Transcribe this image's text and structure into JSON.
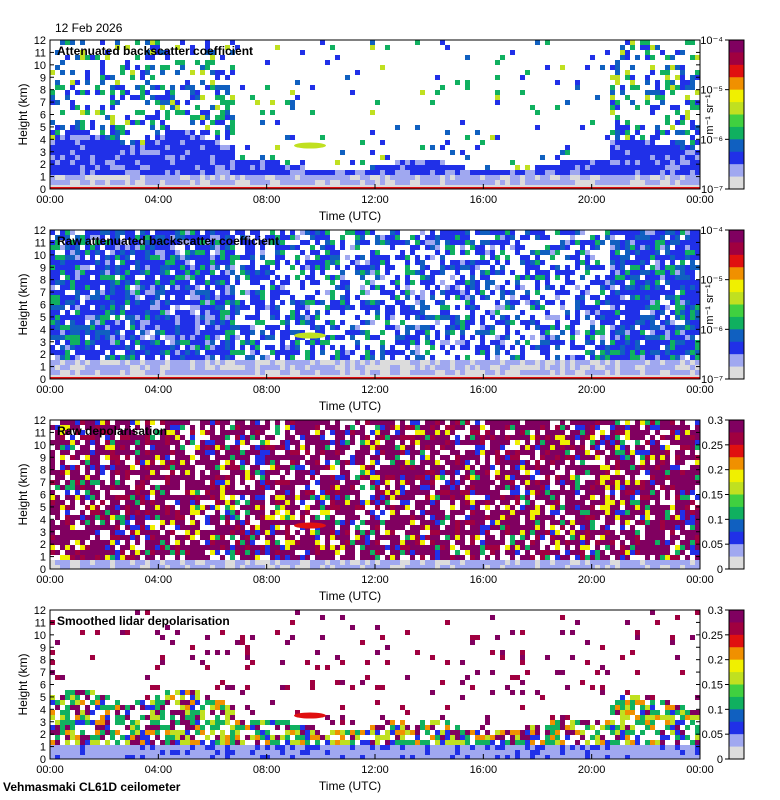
{
  "date": "12 Feb 2026",
  "footer": "Vehmasmaki CL61D ceilometer",
  "x_tick_labels": [
    "00:00",
    "04:00",
    "08:00",
    "12:00",
    "16:00",
    "20:00",
    "00:00"
  ],
  "y_tick_labels": [
    "0",
    "1",
    "2",
    "3",
    "4",
    "5",
    "6",
    "7",
    "8",
    "9",
    "10",
    "11",
    "12"
  ],
  "xlabel": "Time (UTC)",
  "ylabel": "Height (km)",
  "log_colorbar": {
    "unit_label": "m⁻¹ sr⁻¹",
    "ticks": [
      {
        "value": 1e-07,
        "label": "10⁻⁷"
      },
      {
        "value": 1e-06,
        "label": "10⁻⁶"
      },
      {
        "value": 1e-05,
        "label": "10⁻⁵"
      },
      {
        "value": 0.0001,
        "label": "10⁻⁴"
      }
    ]
  },
  "lin_colorbar": {
    "ticks": [
      {
        "value": 0,
        "label": "0"
      },
      {
        "value": 0.05,
        "label": "0.05"
      },
      {
        "value": 0.1,
        "label": "0.1"
      },
      {
        "value": 0.15,
        "label": "0.15"
      },
      {
        "value": 0.2,
        "label": "0.2"
      },
      {
        "value": 0.25,
        "label": "0.25"
      },
      {
        "value": 0.3,
        "label": "0.3"
      }
    ]
  },
  "colormap": [
    "#dcdcdc",
    "#a0a8f0",
    "#2030e8",
    "#1060c0",
    "#10b060",
    "#40d040",
    "#c0e020",
    "#f0f000",
    "#f09000",
    "#e01010",
    "#a00040",
    "#800060"
  ],
  "chart_data": [
    {
      "type": "heatmap",
      "title": "Attenuated backscatter coefficient",
      "x_range": [
        "00:00",
        "24:00"
      ],
      "y_range_km": [
        0,
        12
      ],
      "color_scale": "log",
      "color_range": [
        1e-07,
        0.0001
      ]
    },
    {
      "type": "heatmap",
      "title": "Raw attenuated backscatter coefficient",
      "x_range": [
        "00:00",
        "24:00"
      ],
      "y_range_km": [
        0,
        12
      ],
      "color_scale": "log",
      "color_range": [
        1e-07,
        0.0001
      ]
    },
    {
      "type": "heatmap",
      "title": "Raw depolarisation",
      "x_range": [
        "00:00",
        "24:00"
      ],
      "y_range_km": [
        0,
        12
      ],
      "color_scale": "linear",
      "color_range": [
        0,
        0.3
      ]
    },
    {
      "type": "heatmap",
      "title": "Smoothed lidar depolarisation",
      "x_range": [
        "00:00",
        "24:00"
      ],
      "y_range_km": [
        0,
        12
      ],
      "color_scale": "linear",
      "color_range": [
        0,
        0.3
      ]
    }
  ]
}
